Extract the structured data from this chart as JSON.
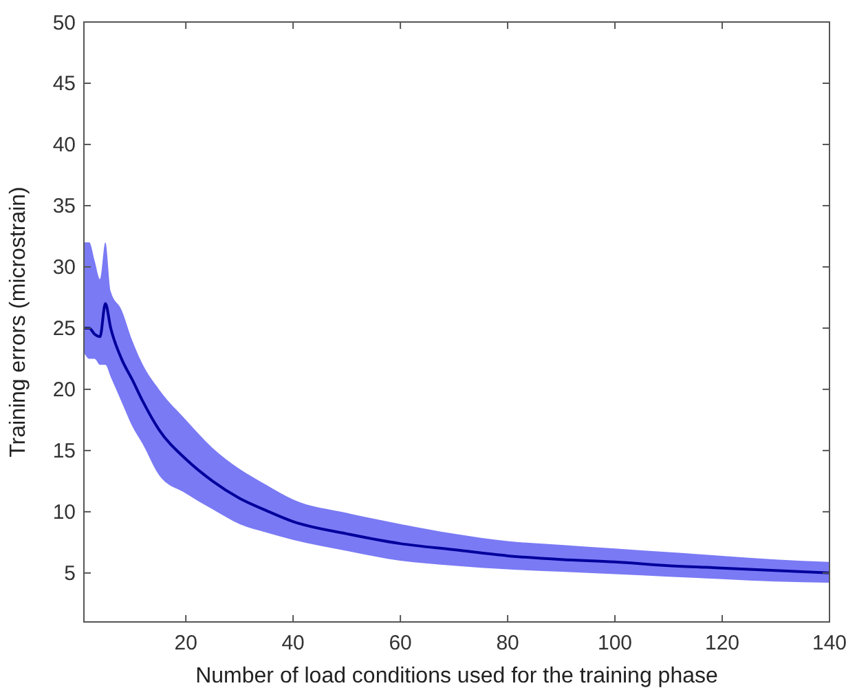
{
  "chart_data": {
    "type": "line",
    "xlabel": "Number of load conditions used for the training phase",
    "ylabel": "Training errors (microstrain)",
    "xlim": [
      1,
      140
    ],
    "xticks": [
      20,
      40,
      60,
      80,
      100,
      120,
      140
    ],
    "ylim": [
      1,
      50
    ],
    "yticks": [
      5,
      10,
      15,
      20,
      25,
      30,
      35,
      40,
      45,
      50
    ],
    "grid": false,
    "series": [
      {
        "color": "#00009c",
        "x": [
          1,
          2,
          3,
          4,
          5,
          6,
          8,
          10,
          12,
          15,
          20,
          25,
          30,
          35,
          40,
          50,
          60,
          70,
          80,
          90,
          100,
          110,
          120,
          130,
          140
        ],
        "values": [
          25,
          25,
          24.5,
          24.3,
          27,
          25,
          22.5,
          20.8,
          19,
          16.7,
          14.3,
          12.5,
          11.1,
          10.1,
          9.2,
          8.2,
          7.4,
          6.9,
          6.4,
          6.1,
          5.9,
          5.6,
          5.4,
          5.2,
          5.0
        ],
        "lower": [
          23,
          22.5,
          22.5,
          22,
          22,
          21,
          19,
          17,
          15.5,
          13,
          11.5,
          10.2,
          9,
          8.3,
          7.7,
          6.8,
          6,
          5.6,
          5.3,
          5.1,
          4.9,
          4.7,
          4.5,
          4.3,
          4.2
        ],
        "upper": [
          32,
          32,
          30.5,
          29,
          32,
          28,
          26.5,
          24,
          22,
          20,
          17.5,
          15.2,
          13.5,
          12.2,
          11,
          9.9,
          9,
          8.2,
          7.6,
          7.3,
          7,
          6.7,
          6.4,
          6.1,
          5.9
        ]
      }
    ]
  }
}
